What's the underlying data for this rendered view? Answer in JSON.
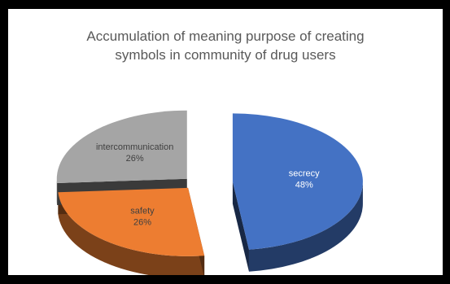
{
  "chart_data": {
    "type": "pie",
    "style": "3d-exploded",
    "title_lines": [
      "Accumulation of meaning purpose of creating",
      "symbols in community of drug users"
    ],
    "slices": [
      {
        "label": "secrecy",
        "value": 48,
        "percent_label": "48%",
        "color": "#4472c4"
      },
      {
        "label": "safety",
        "value": 26,
        "percent_label": "26%",
        "color": "#ed7d31"
      },
      {
        "label": "intercommunication",
        "value": 26,
        "percent_label": "26%",
        "color": "#a5a5a5"
      }
    ],
    "legend": "none"
  }
}
